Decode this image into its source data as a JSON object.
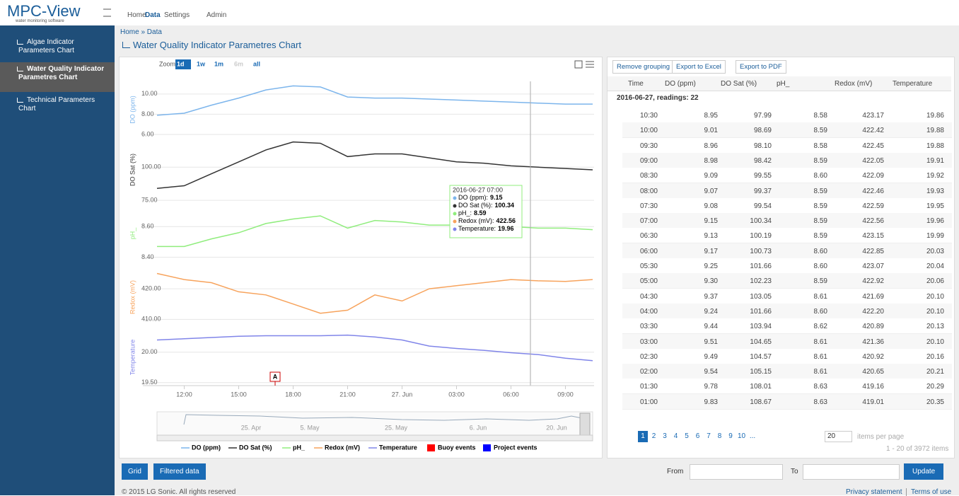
{
  "header": {
    "logo": "MPC-View",
    "tagline": "water monitoring software",
    "nav": [
      "Home",
      "Data",
      "Settings",
      "Admin"
    ]
  },
  "sidebar": {
    "items": [
      "Algae Indicator Parameters Chart",
      "Water Quality Indicator Parametres Chart",
      "Technical Parameters Chart"
    ]
  },
  "breadcrumb": "Home » Data",
  "page_title": "Water Quality Indicator Parametres Chart",
  "chart": {
    "zoom_label": "Zoom",
    "zoom_buttons": [
      "1d",
      "1w",
      "1m",
      "6m",
      "all"
    ],
    "x": [
      10.5,
      12,
      13.5,
      15,
      16.5,
      18,
      19.5,
      21,
      22.5,
      24,
      25.5,
      27,
      28.5,
      30,
      31.5,
      33,
      34.5
    ],
    "xlim": [
      10.5,
      34.5
    ],
    "xticks": [
      {
        "value": 12,
        "label": "12:00"
      },
      {
        "value": 15,
        "label": "15:00"
      },
      {
        "value": 18,
        "label": "18:00"
      },
      {
        "value": 21,
        "label": "21:00"
      },
      {
        "value": 24,
        "label": "27. Jun"
      },
      {
        "value": 27,
        "label": "03:00"
      },
      {
        "value": 30,
        "label": "06:00"
      },
      {
        "value": 33,
        "label": "09:00"
      }
    ],
    "series": [
      {
        "name": "DO (ppm)",
        "color": "#7cb5ec",
        "ylim": [
          6,
          10.9
        ],
        "yticks": [
          {
            "value": 6,
            "label": "6.00"
          },
          {
            "value": 8,
            "label": "8.00"
          },
          {
            "value": 10,
            "label": "10.00"
          }
        ],
        "values": [
          7.9,
          8.1,
          8.9,
          9.6,
          10.4,
          10.8,
          10.7,
          9.7,
          9.6,
          9.6,
          9.5,
          9.4,
          9.3,
          9.2,
          9.1,
          9.0,
          9.0
        ]
      },
      {
        "name": "DO Sat (%)",
        "color": "#333333",
        "ylim": [
          74,
          122
        ],
        "yticks": [
          {
            "value": 75,
            "label": "75.00"
          },
          {
            "value": 100,
            "label": "100.00"
          }
        ],
        "values": [
          84,
          86,
          95,
          104,
          113,
          119,
          118,
          108,
          110,
          110,
          107,
          104,
          103,
          101,
          100,
          99,
          98
        ]
      },
      {
        "name": "pH_",
        "color": "#90ed7d",
        "ylim": [
          8.37,
          8.74
        ],
        "yticks": [
          {
            "value": 8.4,
            "label": "8.40"
          },
          {
            "value": 8.6,
            "label": "8.60"
          }
        ],
        "values": [
          8.47,
          8.47,
          8.52,
          8.56,
          8.62,
          8.65,
          8.67,
          8.59,
          8.64,
          8.63,
          8.61,
          8.61,
          8.6,
          8.6,
          8.59,
          8.59,
          8.58
        ]
      },
      {
        "name": "Redox (mV)",
        "color": "#f7a35c",
        "ylim": [
          408,
          426.5
        ],
        "yticks": [
          {
            "value": 410,
            "label": "410.00"
          },
          {
            "value": 420,
            "label": "420.00"
          }
        ],
        "values": [
          425,
          423,
          422,
          419,
          418,
          415,
          412,
          413,
          418,
          416,
          420,
          421,
          422,
          423,
          422.6,
          422.4,
          423
        ]
      },
      {
        "name": "Temperature",
        "color": "#8085e9",
        "ylim": [
          19.45,
          20.38
        ],
        "yticks": [
          {
            "value": 19.5,
            "label": "19.50"
          },
          {
            "value": 20,
            "label": "20.00"
          }
        ],
        "values": [
          20.2,
          20.22,
          20.24,
          20.26,
          20.27,
          20.27,
          20.27,
          20.28,
          20.25,
          20.2,
          20.1,
          20.06,
          20.03,
          19.99,
          19.96,
          19.9,
          19.86
        ]
      }
    ],
    "events": [
      {
        "name": "Buoy events",
        "color": "#ff0000"
      },
      {
        "name": "Project events",
        "color": "#0000ff"
      }
    ],
    "tooltip": {
      "title": "2016-06-27 07:00",
      "items": [
        {
          "label": "DO (ppm):",
          "value": "9.15"
        },
        {
          "label": "DO Sat (%):",
          "value": "100.34"
        },
        {
          "label": "pH_:",
          "value": "8.59"
        },
        {
          "label": "Redox (mV):",
          "value": "422.56"
        },
        {
          "label": "Temperature:",
          "value": "19.96"
        }
      ]
    },
    "annotation": "A",
    "navigator_labels": [
      "25. Apr",
      "5. May",
      "25. May",
      "6. Jun",
      "20. Jun"
    ]
  },
  "table": {
    "toolbar": [
      "Remove grouping",
      "Export to Excel",
      "Export to PDF"
    ],
    "columns": [
      "Time",
      "DO (ppm)",
      "DO Sat (%)",
      "pH_",
      "Redox (mV)",
      "Temperature"
    ],
    "group": "2016-06-27, readings: 22",
    "rows": [
      [
        "10:30",
        "8.95",
        "97.99",
        "8.58",
        "423.17",
        "19.86"
      ],
      [
        "10:00",
        "9.01",
        "98.69",
        "8.59",
        "422.42",
        "19.88"
      ],
      [
        "09:30",
        "8.96",
        "98.10",
        "8.58",
        "422.45",
        "19.88"
      ],
      [
        "09:00",
        "8.98",
        "98.42",
        "8.59",
        "422.05",
        "19.91"
      ],
      [
        "08:30",
        "9.09",
        "99.55",
        "8.60",
        "422.09",
        "19.92"
      ],
      [
        "08:00",
        "9.07",
        "99.37",
        "8.59",
        "422.46",
        "19.93"
      ],
      [
        "07:30",
        "9.08",
        "99.54",
        "8.59",
        "422.59",
        "19.95"
      ],
      [
        "07:00",
        "9.15",
        "100.34",
        "8.59",
        "422.56",
        "19.96"
      ],
      [
        "06:30",
        "9.13",
        "100.19",
        "8.59",
        "423.15",
        "19.99"
      ],
      [
        "06:00",
        "9.17",
        "100.73",
        "8.60",
        "422.85",
        "20.03"
      ],
      [
        "05:30",
        "9.25",
        "101.66",
        "8.60",
        "423.07",
        "20.04"
      ],
      [
        "05:00",
        "9.30",
        "102.23",
        "8.59",
        "422.92",
        "20.06"
      ],
      [
        "04:30",
        "9.37",
        "103.05",
        "8.61",
        "421.69",
        "20.10"
      ],
      [
        "04:00",
        "9.24",
        "101.66",
        "8.60",
        "422.20",
        "20.10"
      ],
      [
        "03:30",
        "9.44",
        "103.94",
        "8.62",
        "420.89",
        "20.13"
      ],
      [
        "03:00",
        "9.51",
        "104.65",
        "8.61",
        "421.36",
        "20.10"
      ],
      [
        "02:30",
        "9.49",
        "104.57",
        "8.61",
        "420.92",
        "20.16"
      ],
      [
        "02:00",
        "9.54",
        "105.15",
        "8.61",
        "420.65",
        "20.21"
      ],
      [
        "01:30",
        "9.78",
        "108.01",
        "8.63",
        "419.16",
        "20.29"
      ],
      [
        "01:00",
        "9.83",
        "108.67",
        "8.63",
        "419.01",
        "20.35"
      ]
    ],
    "pages": [
      "1",
      "2",
      "3",
      "4",
      "5",
      "6",
      "7",
      "8",
      "9",
      "10",
      "..."
    ],
    "page_size": "20",
    "page_size_label": "items per page",
    "summary": "1 - 20 of 3972 items"
  },
  "bottom": {
    "buttons": [
      "Grid",
      "Filtered data"
    ],
    "from": "From",
    "to": "To",
    "update": "Update"
  },
  "footer": {
    "copyright": "© 2015 LG Sonic. All rights reserved",
    "links": [
      "Privacy statement",
      "Terms of use"
    ]
  }
}
